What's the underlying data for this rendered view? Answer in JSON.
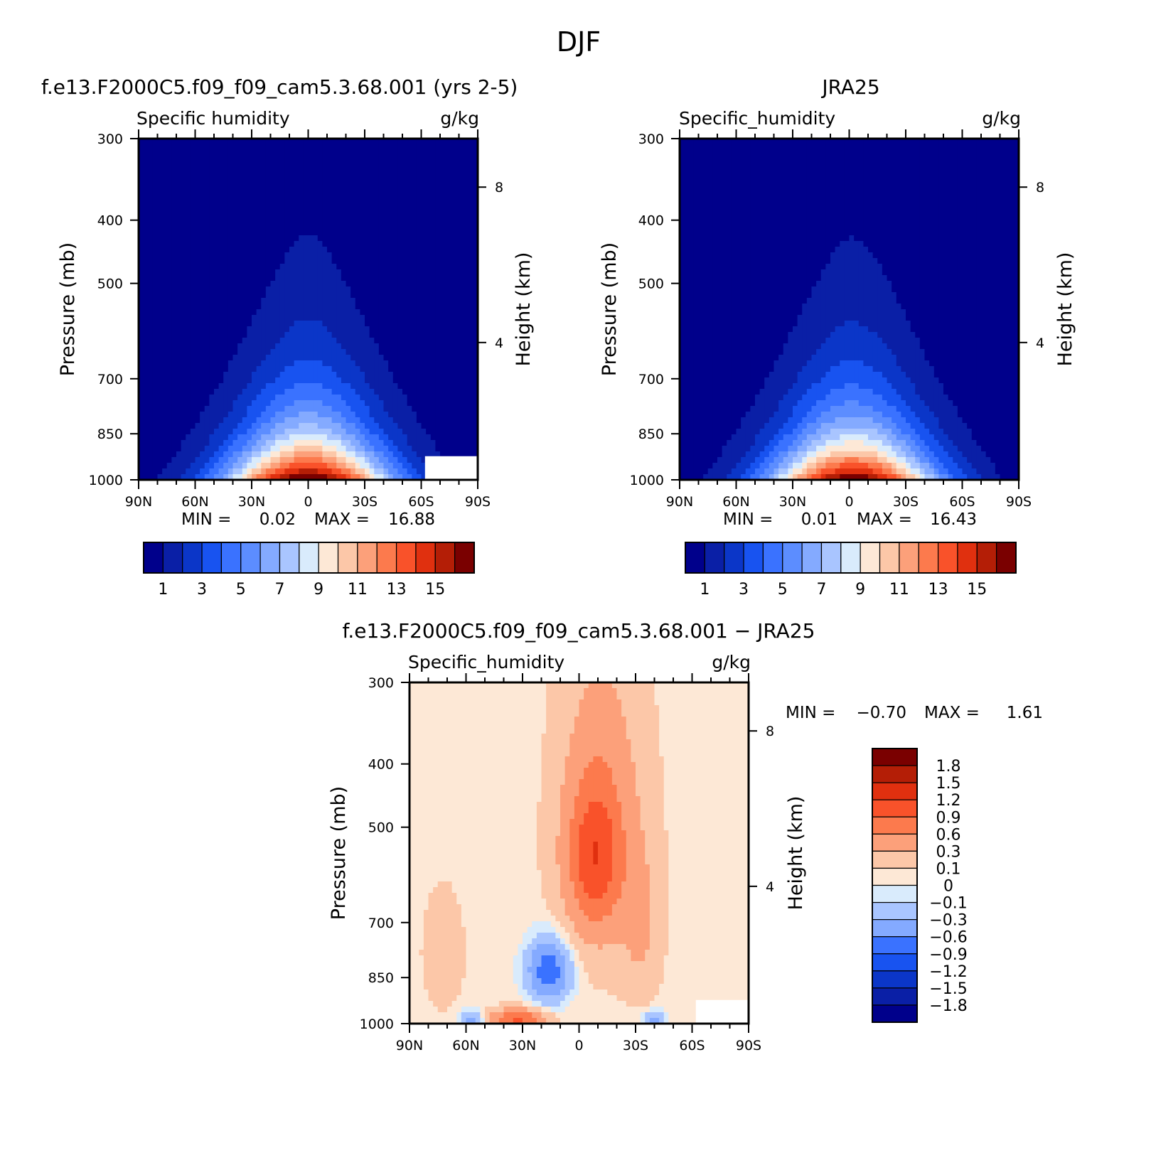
{
  "figure": {
    "title": "DJF"
  },
  "chart_data": [
    {
      "type": "heatmap",
      "title": "f.e13.F2000C5.f09_f09_cam5.3.68.001 (yrs 2-5)",
      "subtitle_left": "Specific humidity",
      "subtitle_right": "g/kg",
      "xlabel": "",
      "ylabel": "Pressure (mb)",
      "ylabel_right": "Height (km)",
      "x_ticks": [
        "90N",
        "60N",
        "30N",
        "0",
        "30S",
        "60S",
        "90S"
      ],
      "y_ticks": [
        "300",
        "400",
        "500",
        "700",
        "850",
        "1000"
      ],
      "y_right_ticks": [
        "8",
        "4"
      ],
      "xlim": [
        90,
        -90
      ],
      "ylim": [
        1000,
        300
      ],
      "y_scale": "log",
      "stats": {
        "min_label": "MIN =",
        "min": "0.02",
        "max_label": "MAX =",
        "max": "16.88"
      },
      "colorbar_labels": [
        "1",
        "3",
        "5",
        "7",
        "9",
        "11",
        "13",
        "15"
      ],
      "field": {
        "peak_lat": 0,
        "peak_value": 16.88,
        "surface_value_high_lat": 0.9,
        "top_value": 0.02,
        "missing_region": "south polar surface"
      }
    },
    {
      "type": "heatmap",
      "title": "JRA25",
      "subtitle_left": "Specific_humidity",
      "subtitle_right": "g/kg",
      "xlabel": "",
      "ylabel": "Pressure (mb)",
      "ylabel_right": "Height (km)",
      "x_ticks": [
        "90N",
        "60N",
        "30N",
        "0",
        "30S",
        "60S",
        "90S"
      ],
      "y_ticks": [
        "300",
        "400",
        "500",
        "700",
        "850",
        "1000"
      ],
      "y_right_ticks": [
        "8",
        "4"
      ],
      "xlim": [
        90,
        -90
      ],
      "ylim": [
        1000,
        300
      ],
      "y_scale": "log",
      "stats": {
        "min_label": "MIN =",
        "min": "0.01",
        "max_label": "MAX =",
        "max": "16.43"
      },
      "colorbar_labels": [
        "1",
        "3",
        "5",
        "7",
        "9",
        "11",
        "13",
        "15"
      ],
      "field": {
        "peak_lat": -2,
        "peak_value": 16.43,
        "surface_value_high_lat": 0.9,
        "top_value": 0.01
      }
    },
    {
      "type": "heatmap",
      "title": "f.e13.F2000C5.f09_f09_cam5.3.68.001 − JRA25",
      "subtitle_left": "Specific_humidity",
      "subtitle_right": "g/kg",
      "xlabel": "",
      "ylabel": "Pressure (mb)",
      "ylabel_right": "Height (km)",
      "x_ticks": [
        "90N",
        "60N",
        "30N",
        "0",
        "30S",
        "60S",
        "90S"
      ],
      "y_ticks": [
        "300",
        "400",
        "500",
        "700",
        "850",
        "1000"
      ],
      "y_right_ticks": [
        "8",
        "4"
      ],
      "xlim": [
        90,
        -90
      ],
      "ylim": [
        1000,
        300
      ],
      "y_scale": "log",
      "stats": {
        "min_label": "MIN =",
        "min": "−0.70",
        "max_label": "MAX =",
        "max": "1.61"
      },
      "colorbar_labels": [
        "1.8",
        "1.5",
        "1.2",
        "0.9",
        "0.6",
        "0.3",
        "0.1",
        "0",
        "−0.1",
        "−0.3",
        "−0.6",
        "−0.9",
        "−1.2",
        "−1.5",
        "−1.8"
      ],
      "field": {
        "positive_max_region": "400-600 mb near equator",
        "negative_region": "700-900 mb near 10-30N"
      }
    }
  ],
  "colors": {
    "sequential": [
      "#00008b",
      "#0a1fa6",
      "#0b36c8",
      "#1853f0",
      "#3a72ff",
      "#5c8dff",
      "#84aaff",
      "#a9c5ff",
      "#d9ebfc",
      "#fde8d6",
      "#fcc7a8",
      "#fca07a",
      "#fc7a4d",
      "#f9522a",
      "#e0300f",
      "#b41e06",
      "#7a0000"
    ],
    "diverging": [
      "#00008b",
      "#0a1fa6",
      "#0b36c8",
      "#1853f0",
      "#3a72ff",
      "#84aaff",
      "#a9c5ff",
      "#d9ebfc",
      "#fde8d6",
      "#fcc7a8",
      "#fca07a",
      "#fc7a4d",
      "#f9522a",
      "#e0300f",
      "#b41e06",
      "#7a0000"
    ]
  }
}
